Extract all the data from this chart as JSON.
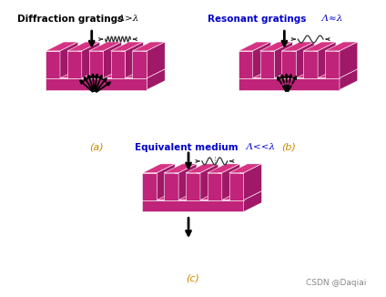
{
  "bg_color": "#ffffff",
  "grating_color_top": "#d63384",
  "grating_color_front": "#c0237a",
  "grating_color_side": "#a01868",
  "grating_color_base_top": "#d63384",
  "grating_color_base_front": "#c0237a",
  "title_a": "Diffraction gratings",
  "title_b": "Resonant gratings",
  "title_c": "Equivalent medium",
  "label_a": "  Λ>λ",
  "label_b": "  Λ≈λ",
  "label_c": "  Λ<<λ",
  "subtitle_a": "(a)",
  "subtitle_b": "(b)",
  "subtitle_c": "(c)",
  "watermark": "CSDN @Daqiai",
  "title_color_a": "#000000",
  "title_color_bc": "#0000cc",
  "subtitle_color": "#cc8800"
}
